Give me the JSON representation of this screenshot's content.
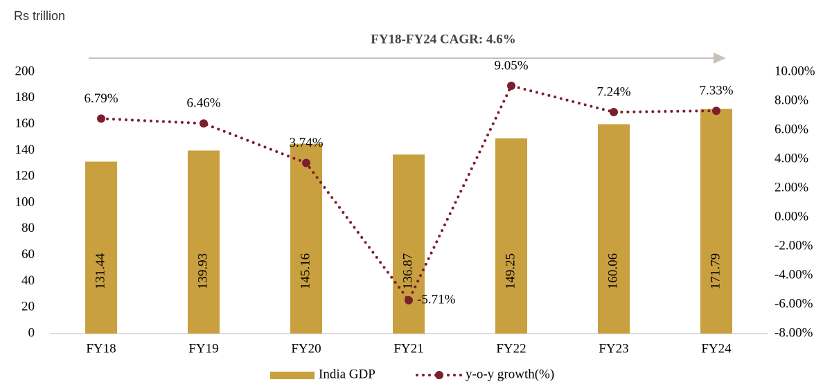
{
  "chart_data": {
    "type": "combo",
    "title": "Rs trillion",
    "annotation": "FY18-FY24 CAGR: 4.6%",
    "categories": [
      "FY18",
      "FY19",
      "FY20",
      "FY21",
      "FY22",
      "FY23",
      "FY24"
    ],
    "series": [
      {
        "name": "India GDP",
        "type": "bar",
        "color": "#c9a03f",
        "values": [
          131.44,
          139.93,
          145.16,
          136.87,
          149.25,
          160.06,
          171.79
        ]
      },
      {
        "name": "y-o-y growth(%)",
        "type": "line",
        "axis": "y2",
        "color": "#7a1f2b",
        "values": [
          6.79,
          6.46,
          3.74,
          -5.71,
          9.05,
          7.24,
          7.33
        ],
        "value_labels": [
          "6.79%",
          "6.46%",
          "3.74%",
          "-5.71%",
          "9.05%",
          "7.24%",
          "7.33%"
        ]
      }
    ],
    "ylim": [
      0,
      200
    ],
    "yticks": [
      0,
      20,
      40,
      60,
      80,
      100,
      120,
      140,
      160,
      180,
      200
    ],
    "y2lim": [
      -8,
      10
    ],
    "y2ticks": [
      {
        "value": -8,
        "label": "-8.00%"
      },
      {
        "value": -6,
        "label": "-6.00%"
      },
      {
        "value": -4,
        "label": "-4.00%"
      },
      {
        "value": -2,
        "label": "-2.00%"
      },
      {
        "value": 0,
        "label": "0.00%"
      },
      {
        "value": 2,
        "label": "2.00%"
      },
      {
        "value": 4,
        "label": "4.00%"
      },
      {
        "value": 6,
        "label": "6.00%"
      },
      {
        "value": 8,
        "label": "8.00%"
      },
      {
        "value": 10,
        "label": "10.00%"
      }
    ],
    "legend": "bottom"
  }
}
